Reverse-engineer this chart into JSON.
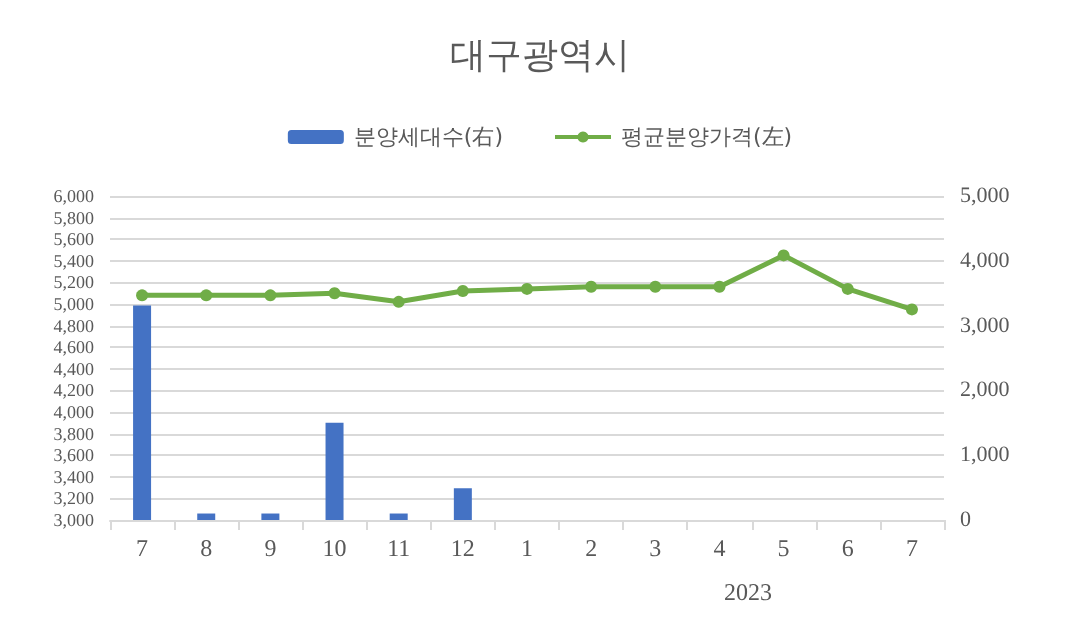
{
  "chart_data": {
    "type": "bar",
    "title": "대구광역시",
    "categories": [
      "7",
      "8",
      "9",
      "10",
      "11",
      "12",
      "1",
      "2",
      "3",
      "4",
      "5",
      "6",
      "7"
    ],
    "series": [
      {
        "name": "분양세대수(右)",
        "axis": "y2",
        "color": "#4472c4",
        "values": [
          3310,
          100,
          100,
          1500,
          100,
          490,
          null,
          null,
          null,
          null,
          null,
          null,
          null
        ]
      },
      {
        "name": "평균분양가격(左)",
        "type": "line",
        "color": "#70ad47",
        "marker": "circle",
        "values": [
          5080,
          5080,
          5080,
          5100,
          5020,
          5120,
          5140,
          5160,
          5160,
          5160,
          5450,
          5140,
          4950
        ]
      }
    ],
    "ylim": [
      3000,
      6000
    ],
    "yticks": [
      {
        "value": 3000,
        "label": "3,000"
      },
      {
        "value": 3200,
        "label": "3,200"
      },
      {
        "value": 3400,
        "label": "3,400"
      },
      {
        "value": 3600,
        "label": "3,600"
      },
      {
        "value": 3800,
        "label": "3,800"
      },
      {
        "value": 4000,
        "label": "4,000"
      },
      {
        "value": 4200,
        "label": "4,200"
      },
      {
        "value": 4400,
        "label": "4,400"
      },
      {
        "value": 4600,
        "label": "4,600"
      },
      {
        "value": 4800,
        "label": "4,800"
      },
      {
        "value": 5000,
        "label": "5,000"
      },
      {
        "value": 5200,
        "label": "5,200"
      },
      {
        "value": 5400,
        "label": "5,400"
      },
      {
        "value": 5600,
        "label": "5,600"
      },
      {
        "value": 5800,
        "label": "5,800"
      },
      {
        "value": 6000,
        "label": "6,000"
      }
    ],
    "y2lim": [
      0,
      5000
    ],
    "y2ticks": [
      0,
      {
        "value": 1000,
        "label": "1,000"
      },
      {
        "value": 2000,
        "label": "2,000"
      },
      {
        "value": 3000,
        "label": "3,000"
      },
      {
        "value": 4000,
        "label": "4,000"
      },
      {
        "value": 5000,
        "label": "5,000"
      }
    ],
    "annotations": [
      "2023"
    ],
    "grid": "y",
    "legend": "top"
  }
}
